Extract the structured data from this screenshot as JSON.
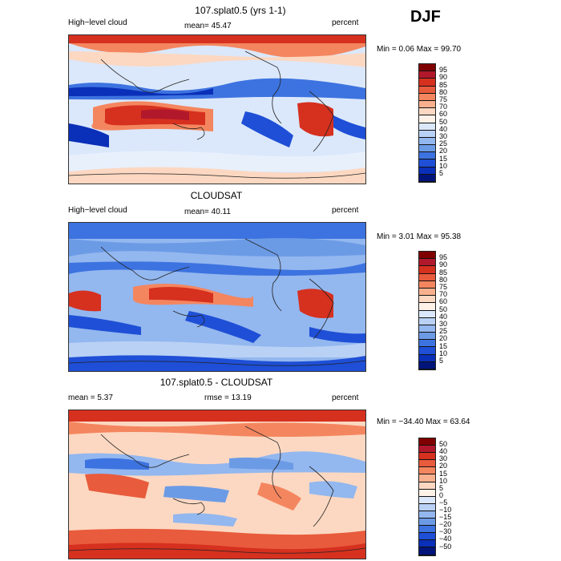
{
  "season": "DJF",
  "panels": [
    {
      "title": "107.splat0.5 (yrs 1-1)",
      "left_label": "High−level cloud",
      "center_label": "mean=  45.47",
      "right_label": "percent",
      "minmax": "Min =   0.06 Max =  99.70"
    },
    {
      "title": "CLOUDSAT",
      "left_label": "High−level cloud",
      "center_label": "mean=  40.11",
      "right_label": "percent",
      "minmax": "Min =   3.01 Max =  95.38"
    },
    {
      "title": "107.splat0.5 - CLOUDSAT",
      "left_label": "mean =    5.37",
      "center_label": "rmse =  13.19",
      "right_label": "percent",
      "minmax": "Min = −34.40 Max =  63.64"
    }
  ],
  "colorbar_abs": {
    "labels": [
      "95",
      "90",
      "85",
      "80",
      "75",
      "70",
      "60",
      "50",
      "40",
      "30",
      "25",
      "20",
      "15",
      "10",
      "5"
    ],
    "colors": [
      "#7f0000",
      "#b2182b",
      "#d6301f",
      "#e85b3c",
      "#f4865f",
      "#f9b08e",
      "#fcd8c2",
      "#fdf1e8",
      "#dbe8fb",
      "#b9d1f5",
      "#93b7ef",
      "#6c9be6",
      "#3d73e0",
      "#1e4fd6",
      "#0a2fb8",
      "#00147a"
    ]
  },
  "colorbar_diff": {
    "labels": [
      "50",
      "40",
      "30",
      "20",
      "15",
      "10",
      "5",
      "0",
      "−5",
      "−10",
      "−15",
      "−20",
      "−30",
      "−40",
      "−50"
    ],
    "colors": [
      "#7f0000",
      "#b2182b",
      "#d6301f",
      "#e85b3c",
      "#f4865f",
      "#f9b08e",
      "#fcd8c2",
      "#fdf1e8",
      "#dbe8fb",
      "#b9d1f5",
      "#93b7ef",
      "#6c9be6",
      "#3d73e0",
      "#1e4fd6",
      "#0a2fb8",
      "#00147a"
    ]
  },
  "colors": {
    "deep_blue": "#0a2fb8",
    "blue": "#3d73e0",
    "light_blue": "#b9d1f5",
    "pale": "#e8f0fc",
    "red": "#d6301f",
    "dark_red": "#b2182b",
    "light_red": "#f9b08e",
    "pale_red": "#fcd8c2",
    "land": "#222222"
  }
}
